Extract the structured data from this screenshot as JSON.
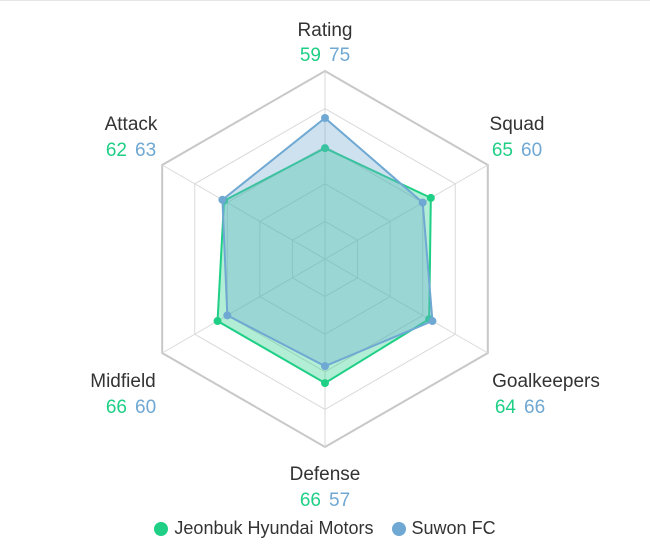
{
  "chart_data": {
    "type": "radar",
    "axes": [
      "Rating",
      "Squad",
      "Goalkeepers",
      "Defense",
      "Midfield",
      "Attack"
    ],
    "range": [
      0,
      100
    ],
    "series": [
      {
        "name": "Jeonbuk Hyundai Motors",
        "color": "#1fcf86",
        "values": [
          59,
          65,
          64,
          66,
          66,
          62
        ]
      },
      {
        "name": "Suwon FC",
        "color": "#6fa8d2",
        "values": [
          75,
          60,
          66,
          57,
          60,
          63
        ]
      }
    ],
    "grid": true,
    "legend_position": "bottom"
  }
}
